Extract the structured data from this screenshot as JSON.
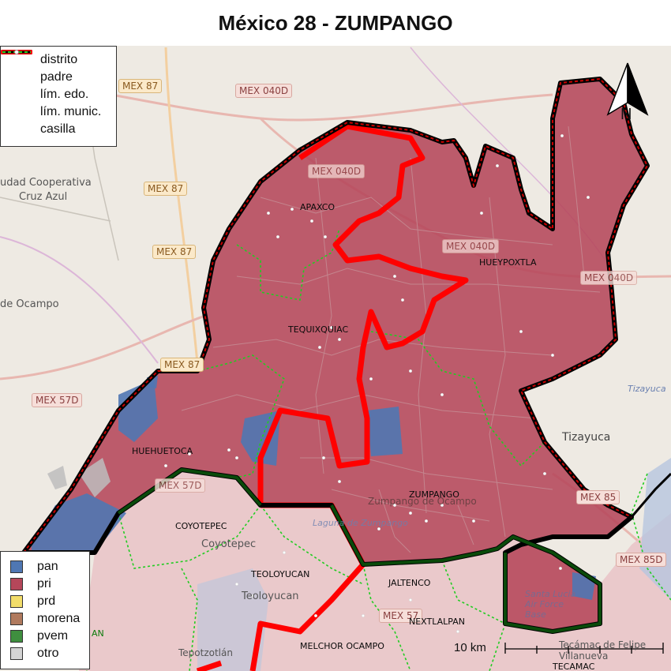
{
  "title": "México 28 - ZUMPANGO",
  "legend_lines": [
    {
      "label": "distrito"
    },
    {
      "label": "padre"
    },
    {
      "label": "lím. edo."
    },
    {
      "label": "lím. munic."
    },
    {
      "label": "casilla"
    }
  ],
  "legend_parties": [
    {
      "label": "pan",
      "color": "#4f77b3"
    },
    {
      "label": "pri",
      "color": "#b5475a"
    },
    {
      "label": "prd",
      "color": "#f2dd6a"
    },
    {
      "label": "morena",
      "color": "#b07a5e"
    },
    {
      "label": "pvem",
      "color": "#3f8f3f"
    },
    {
      "label": "otro",
      "color": "#d4d4d4"
    }
  ],
  "municipalities": {
    "apaxco": "APAXCO",
    "hueypoxtla": "HUEYPOXTLA",
    "tequixquiac": "TEQUIXQUIAC",
    "huehuetoca": "HUEHUETOCA",
    "zumpango": "ZUMPANGO",
    "coyotepec": "COYOTEPEC",
    "teoloyucan": "TEOLOYUCAN",
    "jaltenco": "JALTENCO",
    "nextlalpan": "NEXTLALPAN",
    "melchor_ocampo": "MELCHOR OCAMPO",
    "tecamac": "TECAMAC",
    "partial_an": "AN"
  },
  "basemap": {
    "roads": [
      "MEX 87",
      "MEX 040D",
      "MEX 87",
      "MEX 040D",
      "MEX 87",
      "MEX 040D",
      "MEX 040D",
      "MEX 87",
      "MEX 57D",
      "MEX 57D",
      "MEX 85",
      "MEX 85D",
      "MEX 57"
    ],
    "places": [
      "udad Cooperativa",
      "Cruz Azul",
      "de Ocampo",
      "Tizayuca",
      "Tizayuca",
      "Zumpango de Ocampo",
      "Laguna de Zumpango",
      "Coyotepec",
      "Teoloyucan",
      "Santa Lucia Air Force Base",
      "Tecámac de Felipe Villanueva",
      "Tepotzotlán"
    ]
  },
  "north_label": "N",
  "scale": {
    "label": "10 km"
  },
  "colors": {
    "district": "#000000",
    "parent": "#ff0000",
    "state_limit": "#cc0000",
    "muni_limit": "#22cc22"
  }
}
